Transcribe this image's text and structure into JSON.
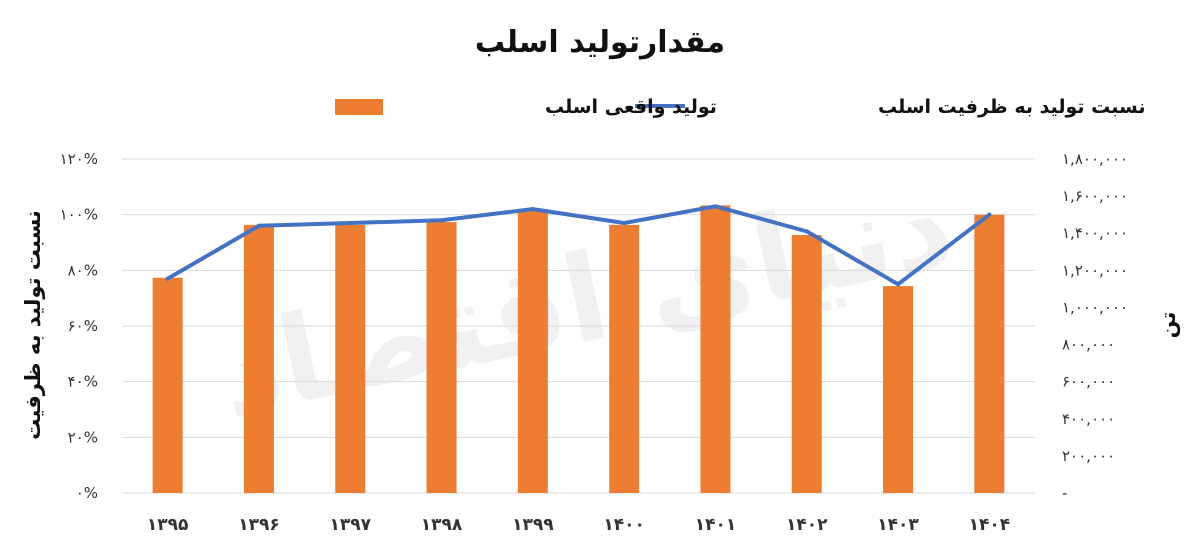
{
  "chart_data": {
    "type": "bar",
    "title": "مقدارتولید اسلب",
    "categories": [
      "۱۳۹۵",
      "۱۳۹۶",
      "۱۳۹۷",
      "۱۳۹۸",
      "۱۳۹۹",
      "۱۴۰۰",
      "۱۴۰۱",
      "۱۴۰۲",
      "۱۴۰۳",
      "۱۴۰۴"
    ],
    "series": [
      {
        "name": "تولید واقعی اسلب",
        "type": "bar",
        "axis": "right",
        "color": "#ED7D31",
        "values": [
          1160000,
          1445000,
          1445000,
          1460000,
          1530000,
          1445000,
          1550000,
          1390000,
          1115000,
          1500000
        ]
      },
      {
        "name": "نسبت تولید به ظرفیت اسلب",
        "type": "line",
        "axis": "left",
        "color": "#4472C4",
        "values": [
          77,
          96,
          97,
          98,
          102,
          97,
          103,
          94,
          75,
          100
        ]
      }
    ],
    "left_axis": {
      "label": "نسبت تولید به ظرفیت",
      "ylim": [
        0,
        120
      ],
      "ticks": [
        0,
        20,
        40,
        60,
        80,
        100,
        120
      ],
      "tick_labels": [
        "۰%",
        "۲۰%",
        "۴۰%",
        "۶۰%",
        "۸۰%",
        "۱۰۰%",
        "۱۲۰%"
      ]
    },
    "right_axis": {
      "label": "تن",
      "ylim": [
        0,
        1800000
      ],
      "ticks": [
        0,
        200000,
        400000,
        600000,
        800000,
        1000000,
        1200000,
        1400000,
        1600000,
        1800000
      ],
      "tick_labels": [
        "-",
        "۲۰۰,۰۰۰",
        "۴۰۰,۰۰۰",
        "۶۰۰,۰۰۰",
        "۸۰۰,۰۰۰",
        "۱,۰۰۰,۰۰۰",
        "۱,۲۰۰,۰۰۰",
        "۱,۴۰۰,۰۰۰",
        "۱,۶۰۰,۰۰۰",
        "۱,۸۰۰,۰۰۰"
      ]
    },
    "grid": true,
    "legend_position": "top"
  },
  "watermark": "دنیای اقتصاد"
}
